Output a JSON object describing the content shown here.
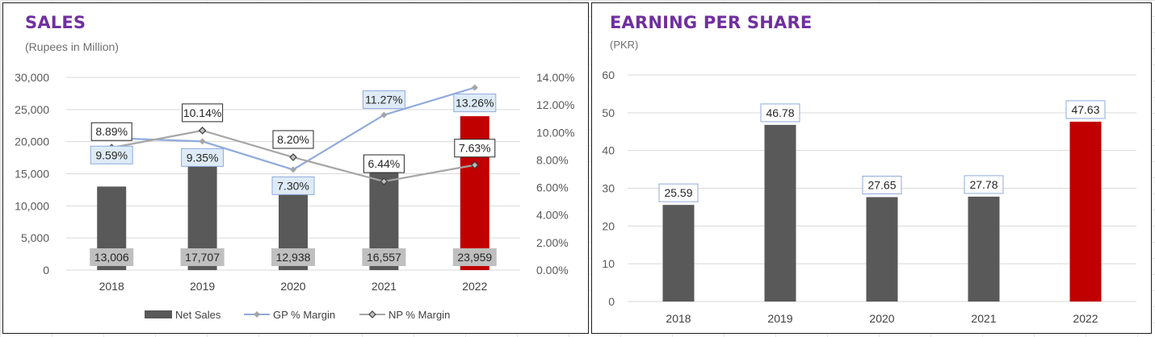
{
  "chart_data": [
    {
      "type": "bar",
      "title": "SALES",
      "subtitle": "(Rupees in Million)",
      "categories": [
        "2018",
        "2019",
        "2020",
        "2021",
        "2022"
      ],
      "y_axis": {
        "range": [
          0,
          30000
        ],
        "ticks": [
          "0",
          "5,000",
          "10,000",
          "15,000",
          "20,000",
          "25,000",
          "30,000"
        ],
        "gridlines": true
      },
      "y2_axis": {
        "range": [
          0,
          14
        ],
        "ticks": [
          "0.00%",
          "2.00%",
          "4.00%",
          "6.00%",
          "8.00%",
          "10.00%",
          "12.00%",
          "14.00%"
        ]
      },
      "bar_series": {
        "name": "Net Sales",
        "values": [
          13006,
          17707,
          12938,
          16557,
          23959
        ],
        "labels": [
          "13,006",
          "17,707",
          "12,938",
          "16,557",
          "23,959"
        ],
        "colors": [
          "#595959",
          "#595959",
          "#595959",
          "#595959",
          "#c00000"
        ]
      },
      "line_series": [
        {
          "name": "GP % Margin",
          "axis": "secondary",
          "values": [
            9.59,
            9.35,
            7.3,
            11.27,
            13.26
          ],
          "labels": [
            "9.59%",
            "9.35%",
            "7.30%",
            "11.27%",
            "13.26%"
          ],
          "color": "#8faadc",
          "marker_color": "#a6a6a6"
        },
        {
          "name": "NP % Margin",
          "axis": "secondary",
          "values": [
            8.89,
            10.14,
            8.2,
            6.44,
            7.63
          ],
          "labels": [
            "8.89%",
            "10.14%",
            "8.20%",
            "6.44%",
            "7.63%"
          ],
          "color": "#a6a6a6",
          "marker_color": "#404040"
        }
      ],
      "legend_position": "bottom",
      "legend": [
        "Net Sales",
        "GP % Margin",
        "NP % Margin"
      ]
    },
    {
      "type": "bar",
      "title": "EARNING PER SHARE",
      "subtitle": "(PKR)",
      "categories": [
        "2018",
        "2019",
        "2020",
        "2021",
        "2022"
      ],
      "y_axis": {
        "range": [
          0,
          60
        ],
        "ticks": [
          "0",
          "10",
          "20",
          "30",
          "40",
          "50",
          "60"
        ],
        "gridlines": true
      },
      "bar_series": {
        "values": [
          25.59,
          46.78,
          27.65,
          27.78,
          47.63
        ],
        "labels": [
          "25.59",
          "46.78",
          "27.65",
          "27.78",
          "47.63"
        ],
        "colors": [
          "#595959",
          "#595959",
          "#595959",
          "#595959",
          "#c00000"
        ]
      }
    }
  ]
}
